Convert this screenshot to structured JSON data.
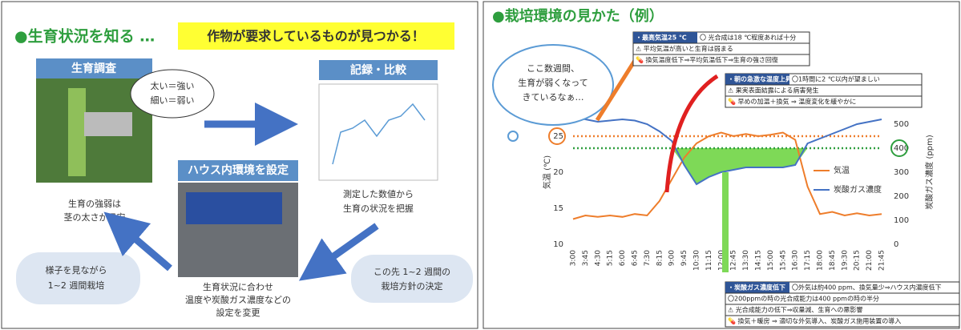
{
  "left_slide": {
    "title": "●生育状況を知る …",
    "highlight": "作物が要求しているものが見つかる！",
    "survey": {
      "header": "生育調査",
      "bubble": [
        "太い＝強い",
        "細い＝弱い"
      ],
      "caption": [
        "生育の強弱は",
        "茎の太さが目安"
      ]
    },
    "record": {
      "header": "記録・比較",
      "caption": [
        "測定した数値から",
        "生育の状況を把握"
      ]
    },
    "setting": {
      "header": "ハウス内環境を設定",
      "caption": [
        "生育状況に合わせ",
        "温度や炭酸ガス濃度などの",
        "設定を変更"
      ]
    },
    "left_note": [
      "様子を見ながら",
      "1~2 週間栽培"
    ],
    "right_note": [
      "この先 1~2 週間の",
      "栽培方針の決定"
    ]
  },
  "right_slide": {
    "title": "●栽培環境の見かた（例）",
    "thought": [
      "ここ数週間、",
      "生育が弱くなって",
      "きているなぁ…"
    ],
    "box1": {
      "tag": "・最高気温25 ℃",
      "lines": [
        "〇 光合成は18 ℃程度あれば十分",
        "⚠ 平均気温が高いと生育は弱まる",
        "💊 換気温度低下⇒平均気温低下⇒生育の強さ回復"
      ]
    },
    "box2": {
      "tag": "・朝の急激な温度上昇",
      "lines": [
        "〇1時間に2 ℃以内が望ましい",
        "⚠ 果実表面結露による病害発生",
        "💊 早めの加温＋換気 ⇒ 温度変化を緩やかに"
      ]
    },
    "box3": {
      "tag": "・炭酸ガス濃度低下",
      "lines": [
        "〇外気は約400 ppm、換気量少⇒ハウス内濃度低下",
        "〇200ppmの時の光合成能力は400 ppmの時の半分",
        "⚠ 光合成能力の低下⇒収量減、生育への悪影響",
        "💊 換気＋暖房 ⇒ 適切な外気導入、炭酸ガス施用装置の導入"
      ]
    }
  },
  "chart_data": {
    "type": "line",
    "y_label": "気温 (℃)",
    "y2_label": "炭酸ガス濃度 (ppm)",
    "categories": [
      "3:00",
      "3:45",
      "4:30",
      "5:15",
      "6:00",
      "6:45",
      "7:30",
      "8:15",
      "9:00",
      "9:45",
      "10:30",
      "11:15",
      "12:00",
      "12:45",
      "13:30",
      "14:15",
      "15:00",
      "15:45",
      "16:30",
      "17:15",
      "18:00",
      "18:45",
      "19:30",
      "20:15",
      "21:00",
      "21:45"
    ],
    "series": [
      {
        "name": "気温",
        "color": "#ee7d2b",
        "values": [
          13.5,
          14,
          13.8,
          14,
          13.8,
          14.2,
          14,
          16,
          19,
          22,
          24,
          25,
          25.5,
          25,
          25.3,
          25,
          25.2,
          25.5,
          24.5,
          18,
          14.2,
          14.5,
          14,
          14.3,
          14,
          14.2
        ]
      },
      {
        "name": "炭酸ガス濃度",
        "color": "#4472c4",
        "axis": "y2",
        "values": [
          530,
          520,
          510,
          515,
          520,
          515,
          500,
          470,
          430,
          330,
          250,
          280,
          300,
          310,
          320,
          320,
          320,
          320,
          330,
          420,
          440,
          460,
          480,
          500,
          510,
          520
        ]
      }
    ],
    "ylim": [
      10,
      30
    ],
    "yticks": [
      10,
      15,
      20,
      25
    ],
    "y2lim": [
      0,
      600
    ],
    "y2ticks": [
      0,
      100,
      200,
      300,
      400,
      500
    ],
    "reference_lines": [
      {
        "value": 25,
        "color": "#ee7d2b"
      },
      {
        "value": 400,
        "axis": "y2",
        "color": "#2e9e3e"
      }
    ],
    "deficit_fill": "#7ed957"
  }
}
